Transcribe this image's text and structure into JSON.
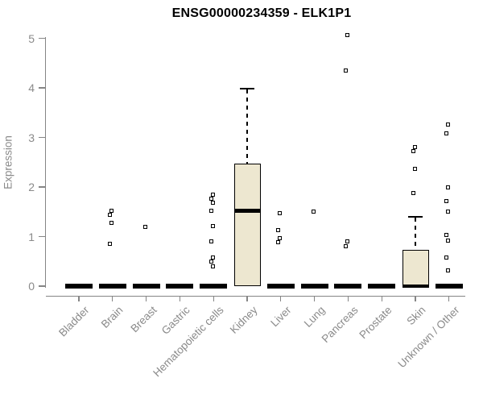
{
  "chart_data": {
    "type": "boxplot",
    "title": "ENSG00000234359 - ELK1P1",
    "ylabel": "Expression",
    "xlabel": "",
    "ylim": [
      0,
      5
    ],
    "yticks": [
      0,
      1,
      2,
      3,
      4,
      5
    ],
    "grid": false,
    "x_label_rotation": -45,
    "categories": [
      "Bladder",
      "Brain",
      "Breast",
      "Gastric",
      "Hematopoietic cells",
      "Kidney",
      "Liver",
      "Lung",
      "Pancreas",
      "Prostate",
      "Skin",
      "Unknown / Other"
    ],
    "boxes": [
      {
        "category": "Bladder",
        "q1": 0,
        "median": 0,
        "q3": 0,
        "whisker_low": 0,
        "whisker_high": 0,
        "outliers": []
      },
      {
        "category": "Brain",
        "q1": 0,
        "median": 0,
        "q3": 0,
        "whisker_low": 0,
        "whisker_high": 0,
        "outliers": [
          1.52,
          1.44,
          1.27,
          0.86
        ]
      },
      {
        "category": "Breast",
        "q1": 0,
        "median": 0,
        "q3": 0,
        "whisker_low": 0,
        "whisker_high": 0,
        "outliers": [
          1.19
        ]
      },
      {
        "category": "Gastric",
        "q1": 0,
        "median": 0,
        "q3": 0,
        "whisker_low": 0,
        "whisker_high": 0,
        "outliers": []
      },
      {
        "category": "Hematopoietic cells",
        "q1": 0,
        "median": 0,
        "q3": 0,
        "whisker_low": 0,
        "whisker_high": 0,
        "outliers": [
          1.85,
          1.77,
          1.69,
          1.52,
          1.21,
          0.91,
          0.58,
          0.49,
          0.4
        ]
      },
      {
        "category": "Kidney",
        "q1": 0,
        "median": 1.52,
        "q3": 2.47,
        "whisker_low": 0,
        "whisker_high": 3.98,
        "outliers": []
      },
      {
        "category": "Liver",
        "q1": 0,
        "median": 0,
        "q3": 0,
        "whisker_low": 0,
        "whisker_high": 0,
        "outliers": [
          1.47,
          1.13,
          0.96,
          0.88
        ]
      },
      {
        "category": "Lung",
        "q1": 0,
        "median": 0,
        "q3": 0,
        "whisker_low": 0,
        "whisker_high": 0,
        "outliers": [
          1.5
        ]
      },
      {
        "category": "Pancreas",
        "q1": 0,
        "median": 0,
        "q3": 0,
        "whisker_low": 0,
        "whisker_high": 0,
        "outliers": [
          5.06,
          4.35,
          0.9,
          0.81
        ]
      },
      {
        "category": "Prostate",
        "q1": 0,
        "median": 0,
        "q3": 0,
        "whisker_low": 0,
        "whisker_high": 0,
        "outliers": []
      },
      {
        "category": "Skin",
        "q1": 0,
        "median": 0,
        "q3": 0.73,
        "whisker_low": 0,
        "whisker_high": 1.4,
        "outliers": [
          2.81,
          2.73,
          2.36,
          1.88
        ]
      },
      {
        "category": "Unknown / Other",
        "q1": 0,
        "median": 0,
        "q3": 0,
        "whisker_low": 0,
        "whisker_high": 0,
        "outliers": [
          3.26,
          3.08,
          1.99,
          1.71,
          1.5,
          1.03,
          0.92,
          0.58,
          0.31
        ]
      }
    ],
    "colors": {
      "box_fill": "#EDE7D0",
      "box_border": "#000000",
      "median": "#000000",
      "outlier": "#000000",
      "axis": "#858585",
      "tick_text": "#8a8a8a",
      "title": "#000000",
      "background": "#ffffff"
    }
  }
}
